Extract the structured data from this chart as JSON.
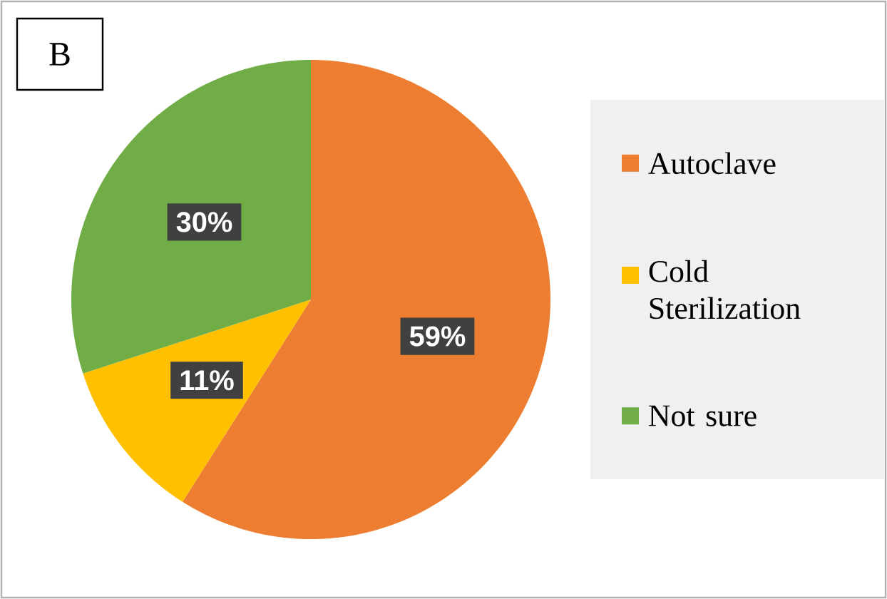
{
  "chart_data": {
    "type": "pie",
    "annotations": [
      "B"
    ],
    "categories": [
      "Autoclave",
      "Cold Sterilization",
      "Not sure"
    ],
    "values": [
      59,
      11,
      30
    ],
    "colors": [
      "#ed7d31",
      "#ffc000",
      "#70ad47"
    ],
    "value_labels": [
      "59%",
      "11%",
      "30%"
    ],
    "legend": "right"
  }
}
